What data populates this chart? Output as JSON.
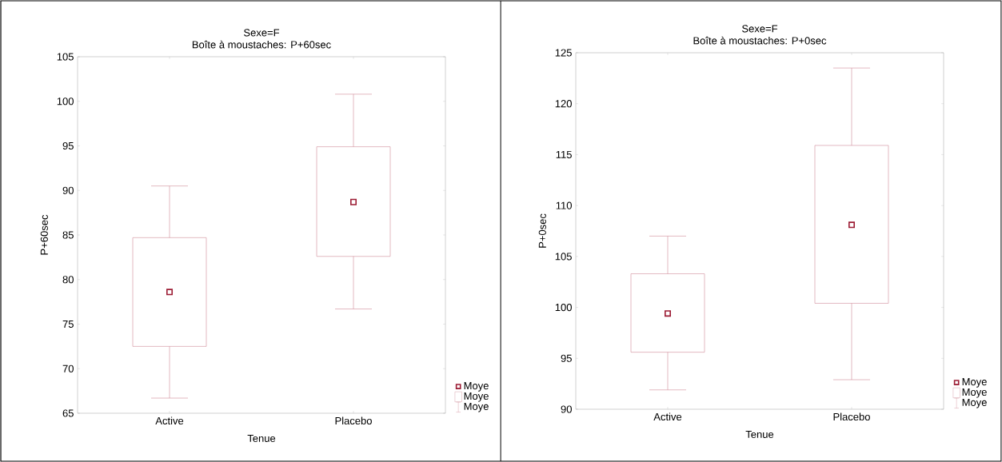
{
  "chart_data": [
    {
      "type": "box",
      "title": "Sexe=F",
      "subtitle": "Boîte à moustaches: P+60sec",
      "xlabel": "Tenue",
      "ylabel": "P+60sec",
      "categories": [
        "Active",
        "Placebo"
      ],
      "ylim": [
        65,
        105
      ],
      "yticks": [
        65,
        70,
        75,
        80,
        85,
        90,
        95,
        100,
        105
      ],
      "legend": "bottom right",
      "grid": false,
      "series": [
        {
          "name": "Moye",
          "color": "#d08c98",
          "marker": "square",
          "boxes": [
            {
              "low": 66.7,
              "q1": 72.5,
              "median": 78.6,
              "q3": 84.7,
              "high": 90.5
            },
            {
              "low": 76.7,
              "q1": 82.6,
              "median": 88.7,
              "q3": 94.9,
              "high": 100.8
            }
          ]
        }
      ]
    },
    {
      "type": "box",
      "title": "Sexe=F",
      "subtitle": "Boîte à moustaches: P+0sec",
      "xlabel": "Tenue",
      "ylabel": "P+0sec",
      "categories": [
        "Active",
        "Placebo"
      ],
      "ylim": [
        90,
        125
      ],
      "yticks": [
        90,
        95,
        100,
        105,
        110,
        115,
        120,
        125
      ],
      "legend": "bottom right",
      "grid": false,
      "series": [
        {
          "name": "Moye",
          "color": "#d08c98",
          "marker": "square",
          "boxes": [
            {
              "low": 91.9,
              "q1": 95.6,
              "median": 99.4,
              "q3": 103.3,
              "high": 107
            },
            {
              "low": 92.9,
              "q1": 100.4,
              "median": 108.1,
              "q3": 115.9,
              "high": 123.5
            }
          ]
        }
      ]
    }
  ]
}
